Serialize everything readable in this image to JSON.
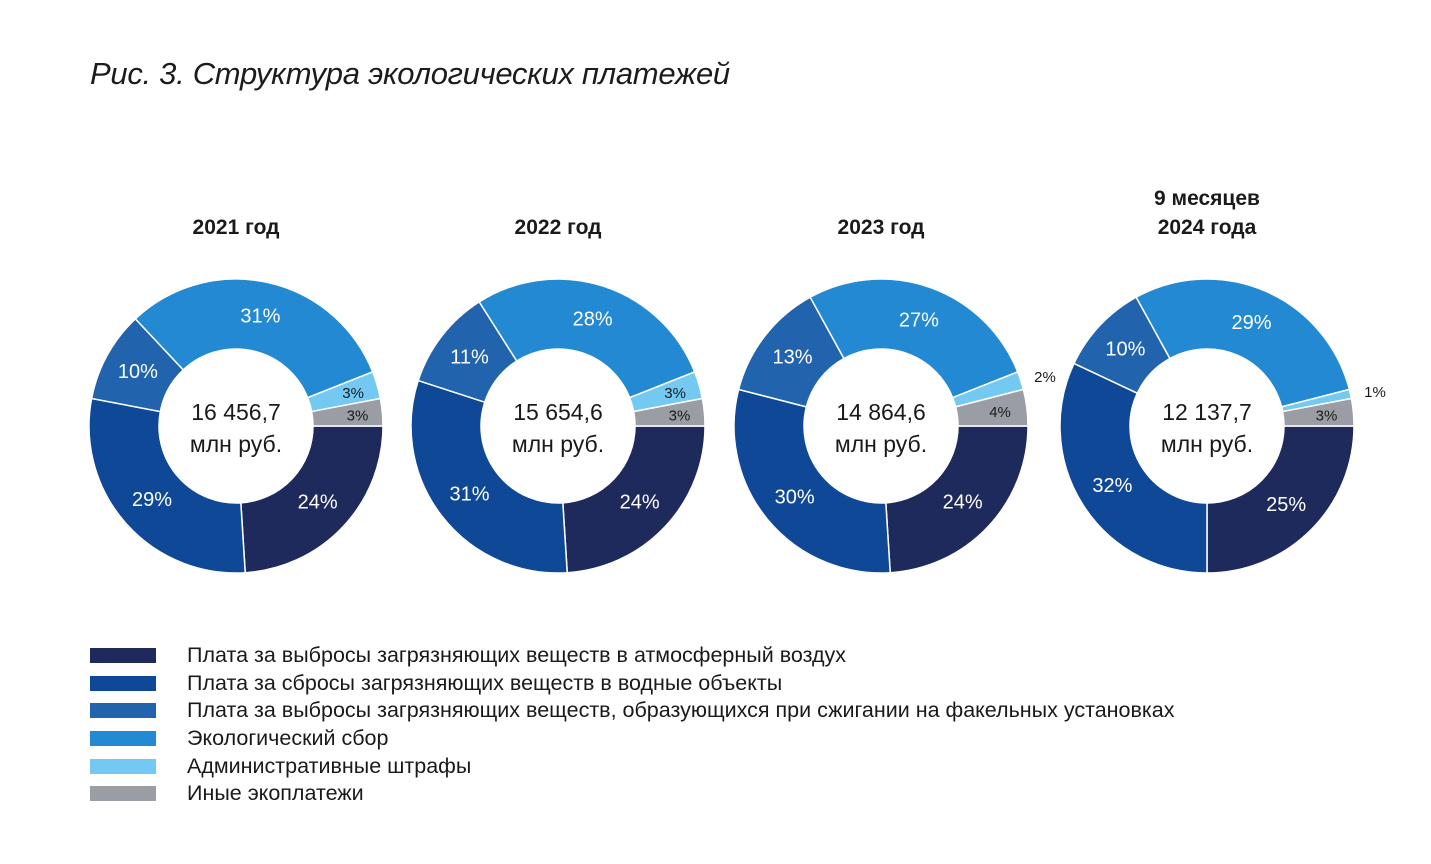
{
  "title": "Рис. 3. Структура экологических платежей",
  "colors": {
    "air": "#1f2a5c",
    "water": "#0e4897",
    "flare": "#2163ac",
    "eco": "#2389d3",
    "fines": "#74c9f3",
    "other": "#9a9ea4"
  },
  "legend": [
    {
      "key": "air",
      "label": "Плата за выбросы загрязняющих веществ в атмосферный воздух"
    },
    {
      "key": "water",
      "label": "Плата за сбросы загрязняющих веществ в водные объекты"
    },
    {
      "key": "flare",
      "label": "Плата за выбросы загрязняющих веществ, образующихся при сжигании на факельных установках"
    },
    {
      "key": "eco",
      "label": "Экологический сбор"
    },
    {
      "key": "fines",
      "label": "Административные штрафы"
    },
    {
      "key": "other",
      "label": "Иные экоплатежи"
    }
  ],
  "chart_data": [
    {
      "type": "pie",
      "title": [
        "2021 год"
      ],
      "center": [
        "16 456,7",
        "млн руб."
      ],
      "slices": [
        {
          "key": "air",
          "value": 24,
          "label": "24%"
        },
        {
          "key": "water",
          "value": 29,
          "label": "29%"
        },
        {
          "key": "flare",
          "value": 10,
          "label": "10%"
        },
        {
          "key": "eco",
          "value": 31,
          "label": "31%"
        },
        {
          "key": "fines",
          "value": 3,
          "label": "3%"
        },
        {
          "key": "other",
          "value": 3,
          "label": "3%"
        }
      ]
    },
    {
      "type": "pie",
      "title": [
        "2022 год"
      ],
      "center": [
        "15 654,6",
        "млн руб."
      ],
      "slices": [
        {
          "key": "air",
          "value": 24,
          "label": "24%"
        },
        {
          "key": "water",
          "value": 31,
          "label": "31%"
        },
        {
          "key": "flare",
          "value": 11,
          "label": "11%"
        },
        {
          "key": "eco",
          "value": 28,
          "label": "28%"
        },
        {
          "key": "fines",
          "value": 3,
          "label": "3%"
        },
        {
          "key": "other",
          "value": 3,
          "label": "3%"
        }
      ]
    },
    {
      "type": "pie",
      "title": [
        "2023 год"
      ],
      "center": [
        "14 864,6",
        "млн руб."
      ],
      "slices": [
        {
          "key": "air",
          "value": 24,
          "label": "24%"
        },
        {
          "key": "water",
          "value": 30,
          "label": "30%"
        },
        {
          "key": "flare",
          "value": 13,
          "label": "13%"
        },
        {
          "key": "eco",
          "value": 27,
          "label": "27%"
        },
        {
          "key": "fines",
          "value": 2,
          "label": "2%"
        },
        {
          "key": "other",
          "value": 4,
          "label": "4%"
        }
      ]
    },
    {
      "type": "pie",
      "title": [
        "9 месяцев",
        "2024 года"
      ],
      "center": [
        "12 137,7",
        "млн руб."
      ],
      "slices": [
        {
          "key": "air",
          "value": 25,
          "label": "25%"
        },
        {
          "key": "water",
          "value": 32,
          "label": "32%"
        },
        {
          "key": "flare",
          "value": 10,
          "label": "10%"
        },
        {
          "key": "eco",
          "value": 29,
          "label": "29%"
        },
        {
          "key": "fines",
          "value": 1,
          "label": "1%"
        },
        {
          "key": "other",
          "value": 3,
          "label": "3%"
        }
      ]
    }
  ]
}
